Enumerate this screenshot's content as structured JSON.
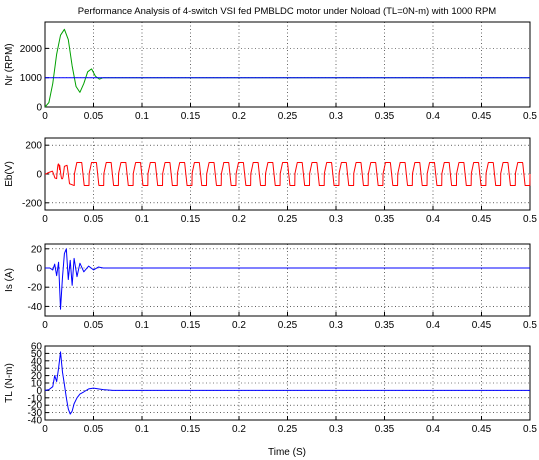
{
  "figure": {
    "title": "Performance Analysis of 4-switch VSI fed PMBLDC motor under Noload (TL=0N-m) with 1000 RPM",
    "xlabel": "Time (S)"
  },
  "chart_data": [
    {
      "type": "line",
      "ylabel": "Nr (RPM)",
      "xlim": [
        0,
        0.5
      ],
      "ylim": [
        0,
        2900
      ],
      "x_ticks": [
        "0",
        "0.05",
        "0.1",
        "0.15",
        "0.2",
        "0.25",
        "0.3",
        "0.35",
        "0.4",
        "0.45",
        "0.5"
      ],
      "y_ticks": [
        0,
        1000,
        2000
      ],
      "grid": true,
      "series": [
        {
          "color": "#00a000",
          "x": [
            0,
            0.004,
            0.008,
            0.012,
            0.016,
            0.02,
            0.024,
            0.028,
            0.032,
            0.036,
            0.04,
            0.044,
            0.048,
            0.052,
            0.056,
            0.06,
            0.5
          ],
          "y": [
            0,
            150,
            800,
            1800,
            2450,
            2650,
            2300,
            1400,
            700,
            500,
            800,
            1200,
            1300,
            1050,
            950,
            1000,
            1000
          ]
        },
        {
          "color": "#0000ff",
          "x": [
            0,
            0.5
          ],
          "y": [
            1000,
            1000
          ]
        }
      ]
    },
    {
      "type": "line",
      "ylabel": "Eb(V)",
      "xlim": [
        0,
        0.5
      ],
      "ylim": [
        -250,
        250
      ],
      "x_ticks": [
        "0",
        "0.05",
        "0.1",
        "0.15",
        "0.2",
        "0.25",
        "0.3",
        "0.35",
        "0.4",
        "0.45",
        "0.5"
      ],
      "y_ticks": [
        -200,
        0,
        200
      ],
      "grid": true,
      "series": [
        {
          "color": "#ff0000",
          "x": [
            0,
            0.5
          ],
          "y": [
            0,
            0
          ],
          "waveform": "trapezoidal-back-emf",
          "amplitude": 80,
          "cycles": 33,
          "startup_peak": 200
        }
      ]
    },
    {
      "type": "line",
      "ylabel": "Is (A)",
      "xlim": [
        0,
        0.5
      ],
      "ylim": [
        -50,
        25
      ],
      "x_ticks": [
        "0",
        "0.05",
        "0.1",
        "0.15",
        "0.2",
        "0.25",
        "0.3",
        "0.35",
        "0.4",
        "0.45",
        "0.5"
      ],
      "y_ticks": [
        -40,
        -20,
        0,
        20
      ],
      "grid": true,
      "series": [
        {
          "color": "#0000ff",
          "x": [
            0,
            0.005,
            0.008,
            0.01,
            0.012,
            0.014,
            0.016,
            0.018,
            0.02,
            0.022,
            0.024,
            0.026,
            0.028,
            0.03,
            0.033,
            0.036,
            0.04,
            0.045,
            0.05,
            0.055,
            0.06,
            0.065,
            0.5
          ],
          "y": [
            0,
            0,
            -2,
            4,
            -8,
            6,
            -43,
            -10,
            15,
            20,
            -12,
            8,
            -18,
            10,
            -9,
            5,
            -4,
            2,
            -2,
            1,
            0,
            0,
            0
          ]
        }
      ]
    },
    {
      "type": "line",
      "ylabel": "TL (N-m)",
      "xlim": [
        0,
        0.5
      ],
      "ylim": [
        -40,
        60
      ],
      "x_ticks": [
        "0",
        "0.05",
        "0.1",
        "0.15",
        "0.2",
        "0.25",
        "0.3",
        "0.35",
        "0.4",
        "0.45",
        "0.5"
      ],
      "y_ticks": [
        -40,
        -30,
        -20,
        -10,
        0,
        10,
        20,
        30,
        40,
        50,
        60
      ],
      "grid": true,
      "series": [
        {
          "color": "#0000ff",
          "x": [
            0,
            0.004,
            0.008,
            0.01,
            0.012,
            0.014,
            0.016,
            0.018,
            0.02,
            0.022,
            0.024,
            0.026,
            0.028,
            0.03,
            0.033,
            0.036,
            0.04,
            0.045,
            0.05,
            0.055,
            0.06,
            0.07,
            0.5
          ],
          "y": [
            0,
            1,
            5,
            20,
            12,
            30,
            52,
            25,
            8,
            -10,
            -25,
            -32,
            -28,
            -18,
            -10,
            -5,
            -2,
            2,
            3,
            2,
            1,
            0,
            0
          ]
        }
      ]
    }
  ]
}
